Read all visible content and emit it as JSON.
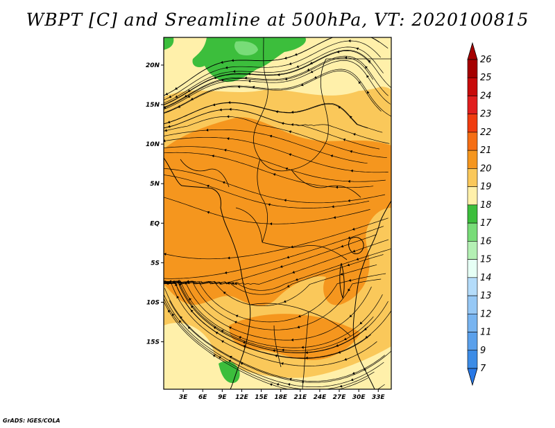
{
  "title": "WBPT [C] and Sreamline at 500hPa, VT: 2020100815",
  "credit": "GrADS: IGES/COLA",
  "map": {
    "lon_range": [
      0,
      35
    ],
    "lat_range": [
      -21,
      23.5
    ],
    "lat_ticks": [
      {
        "value": 20,
        "label": "20N"
      },
      {
        "value": 15,
        "label": "15N"
      },
      {
        "value": 10,
        "label": "10N"
      },
      {
        "value": 5,
        "label": "5N"
      },
      {
        "value": 0,
        "label": "EQ"
      },
      {
        "value": -5,
        "label": "5S"
      },
      {
        "value": -10,
        "label": "10S"
      },
      {
        "value": -15,
        "label": "15S"
      }
    ],
    "lon_ticks": [
      {
        "value": 3,
        "label": "3E"
      },
      {
        "value": 6,
        "label": "6E"
      },
      {
        "value": 9,
        "label": "9E"
      },
      {
        "value": 12,
        "label": "12E"
      },
      {
        "value": 15,
        "label": "15E"
      },
      {
        "value": 18,
        "label": "18E"
      },
      {
        "value": 21,
        "label": "21E"
      },
      {
        "value": 24,
        "label": "24E"
      },
      {
        "value": 27,
        "label": "27E"
      },
      {
        "value": 30,
        "label": "30E"
      },
      {
        "value": 33,
        "label": "33E"
      }
    ]
  },
  "colorbar": {
    "labels": [
      "26",
      "25",
      "24",
      "23",
      "22",
      "21",
      "20",
      "19",
      "18",
      "17",
      "16",
      "15",
      "14",
      "13",
      "12",
      "11",
      "9",
      "7"
    ],
    "colors": [
      "#a50000",
      "#c80a0a",
      "#e11e1e",
      "#f03c0f",
      "#f56e14",
      "#f5961e",
      "#fac85a",
      "#fff0aa",
      "#3cbe3c",
      "#78dc78",
      "#b4f0b4",
      "#e6fff5",
      "#b4dcfa",
      "#96c8f5",
      "#78b4f0",
      "#5aa0eb",
      "#3c8ce6"
    ],
    "top_arrow_color": "#a50000",
    "bottom_arrow_color": "#2878e6"
  }
}
